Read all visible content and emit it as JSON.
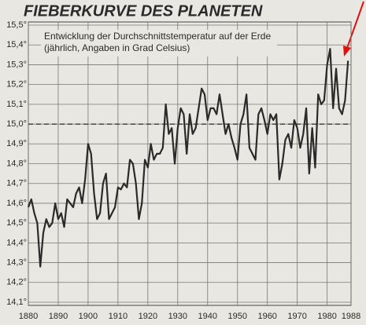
{
  "chart_data": {
    "type": "line",
    "title": "FIEBERKURVE DES PLANETEN",
    "subtitle": [
      "Entwicklung der Durchschnittstemperatur auf der Erde",
      "(jährlich, Angaben in Grad Celsius)"
    ],
    "x": [
      1880,
      1881,
      1882,
      1883,
      1884,
      1885,
      1886,
      1887,
      1888,
      1889,
      1890,
      1891,
      1892,
      1893,
      1894,
      1895,
      1896,
      1897,
      1898,
      1899,
      1900,
      1901,
      1902,
      1903,
      1904,
      1905,
      1906,
      1907,
      1908,
      1909,
      1910,
      1911,
      1912,
      1913,
      1914,
      1915,
      1916,
      1917,
      1918,
      1919,
      1920,
      1921,
      1922,
      1923,
      1924,
      1925,
      1926,
      1927,
      1928,
      1929,
      1930,
      1931,
      1932,
      1933,
      1934,
      1935,
      1936,
      1937,
      1938,
      1939,
      1940,
      1941,
      1942,
      1943,
      1944,
      1945,
      1946,
      1947,
      1948,
      1949,
      1950,
      1951,
      1952,
      1953,
      1954,
      1955,
      1956,
      1957,
      1958,
      1959,
      1960,
      1961,
      1962,
      1963,
      1964,
      1965,
      1966,
      1967,
      1968,
      1969,
      1970,
      1971,
      1972,
      1973,
      1974,
      1975,
      1976,
      1977,
      1978,
      1979,
      1980,
      1981,
      1982,
      1983,
      1984,
      1985,
      1986,
      1987
    ],
    "series": [
      {
        "color": "#2a2a2a",
        "values": [
          14.58,
          14.62,
          14.55,
          14.5,
          14.28,
          14.45,
          14.52,
          14.48,
          14.5,
          14.6,
          14.52,
          14.55,
          14.48,
          14.62,
          14.6,
          14.58,
          14.65,
          14.68,
          14.6,
          14.72,
          14.9,
          14.85,
          14.65,
          14.52,
          14.55,
          14.7,
          14.75,
          14.52,
          14.55,
          14.58,
          14.68,
          14.67,
          14.7,
          14.68,
          14.82,
          14.8,
          14.7,
          14.52,
          14.6,
          14.82,
          14.78,
          14.9,
          14.82,
          14.85,
          14.85,
          14.88,
          15.1,
          14.95,
          14.98,
          14.8,
          14.98,
          15.08,
          15.05,
          14.85,
          15.05,
          14.95,
          14.98,
          15.08,
          15.18,
          15.15,
          15.02,
          15.08,
          15.08,
          15.05,
          15.15,
          15.05,
          14.95,
          15.0,
          14.93,
          14.88,
          14.82,
          15.0,
          15.05,
          15.15,
          14.88,
          14.85,
          14.82,
          15.05,
          15.08,
          15.02,
          14.95,
          15.05,
          15.02,
          15.05,
          14.72,
          14.8,
          14.92,
          14.95,
          14.88,
          15.02,
          14.98,
          14.88,
          14.95,
          15.08,
          14.75,
          14.98,
          14.78,
          15.15,
          15.1,
          15.12,
          15.3,
          15.38,
          15.08,
          15.28,
          15.08,
          15.05,
          15.12,
          15.32
        ]
      }
    ],
    "xlim": [
      1880,
      1988
    ],
    "xticks": [
      1880,
      1890,
      1900,
      1910,
      1920,
      1930,
      1940,
      1950,
      1960,
      1970,
      1980,
      1988
    ],
    "ylim": [
      14.1,
      15.5
    ],
    "yticks": [
      {
        "value": 14.1,
        "label": "14,1°"
      },
      {
        "value": 14.2,
        "label": "14,2°"
      },
      {
        "value": 14.3,
        "label": "14,3°"
      },
      {
        "value": 14.4,
        "label": "14,4°"
      },
      {
        "value": 14.5,
        "label": "14,5°"
      },
      {
        "value": 14.6,
        "label": "14,6°"
      },
      {
        "value": 14.7,
        "label": "14,7°"
      },
      {
        "value": 14.8,
        "label": "14,8°"
      },
      {
        "value": 14.9,
        "label": "14,9°"
      },
      {
        "value": 15.0,
        "label": "15,0°"
      },
      {
        "value": 15.1,
        "label": "15,1°"
      },
      {
        "value": 15.2,
        "label": "15,2°"
      },
      {
        "value": 15.3,
        "label": "15,3°"
      },
      {
        "value": 15.4,
        "label": "15,4°"
      },
      {
        "value": 15.5,
        "label": "15,5°"
      }
    ],
    "reference_line": 15.0,
    "grid": true
  }
}
